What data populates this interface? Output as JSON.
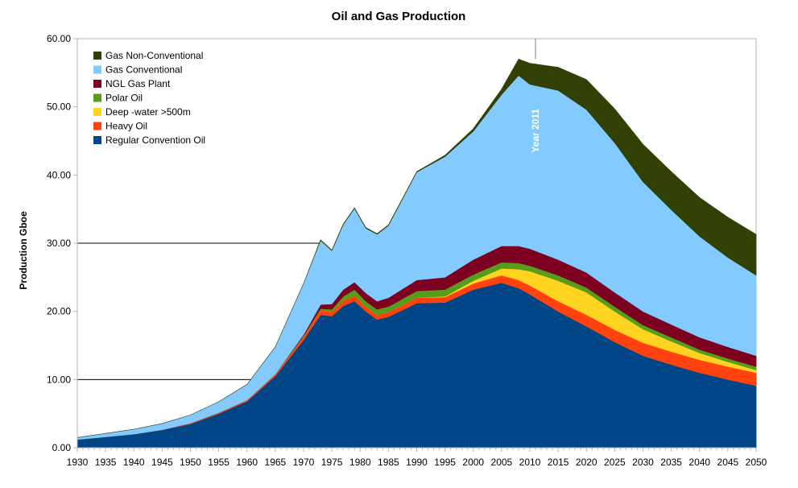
{
  "chart_data": {
    "type": "area",
    "stacked": true,
    "title": "Oil and Gas Production",
    "xlabel": "",
    "ylabel": "Production Gboe",
    "xlim": [
      1930,
      2050
    ],
    "ylim": [
      0,
      60
    ],
    "x_ticks": [
      "1930",
      "1935",
      "1940",
      "1945",
      "1950",
      "1955",
      "1960",
      "1965",
      "1970",
      "1975",
      "1980",
      "1985",
      "1990",
      "1995",
      "2000",
      "2005",
      "2010",
      "2015",
      "2020",
      "2025",
      "2030",
      "2035",
      "2040",
      "2045",
      "2050"
    ],
    "y_ticks": [
      "0.00",
      "10.00",
      "20.00",
      "30.00",
      "40.00",
      "50.00",
      "60.00"
    ],
    "gridlines_y": [
      10,
      30
    ],
    "legend_position": "top-left",
    "x": [
      1930,
      1935,
      1940,
      1945,
      1950,
      1955,
      1960,
      1965,
      1970,
      1973,
      1975,
      1977,
      1979,
      1981,
      1983,
      1985,
      1990,
      1995,
      2000,
      2005,
      2008,
      2010,
      2015,
      2020,
      2025,
      2030,
      2035,
      2040,
      2045,
      2050
    ],
    "series": [
      {
        "name": "Regular Convention Oil",
        "color": "#004586",
        "values": [
          1.2,
          1.6,
          2.0,
          2.6,
          3.5,
          5.0,
          6.8,
          10.5,
          15.8,
          19.5,
          19.3,
          20.8,
          21.5,
          20.0,
          18.8,
          19.2,
          21.2,
          21.3,
          23.2,
          24.2,
          23.4,
          22.5,
          20.0,
          17.8,
          15.5,
          13.5,
          12.2,
          11.0,
          10.0,
          9.1
        ]
      },
      {
        "name": "Heavy Oil",
        "color": "#ff420e",
        "values": [
          0,
          0,
          0,
          0.05,
          0.1,
          0.15,
          0.2,
          0.3,
          0.5,
          0.7,
          0.7,
          0.8,
          0.8,
          0.7,
          0.7,
          0.7,
          0.8,
          0.8,
          0.9,
          1.1,
          1.2,
          1.3,
          1.5,
          1.7,
          1.8,
          1.9,
          1.9,
          1.9,
          1.9,
          1.9
        ]
      },
      {
        "name": "Deep -water >500m",
        "color": "#ffd320",
        "values": [
          0,
          0,
          0,
          0,
          0,
          0,
          0,
          0,
          0,
          0,
          0,
          0,
          0,
          0,
          0,
          0,
          0,
          0.1,
          0.4,
          1.0,
          1.6,
          2.1,
          3.0,
          3.3,
          2.7,
          2.0,
          1.5,
          1.0,
          0.7,
          0.4
        ]
      },
      {
        "name": "Polar Oil",
        "color": "#579d1c",
        "values": [
          0,
          0,
          0,
          0,
          0,
          0,
          0,
          0,
          0.1,
          0.2,
          0.3,
          0.6,
          0.9,
          0.8,
          0.8,
          0.8,
          1.0,
          1.0,
          0.9,
          0.9,
          0.9,
          0.8,
          0.8,
          0.7,
          0.7,
          0.6,
          0.6,
          0.5,
          0.5,
          0.5
        ]
      },
      {
        "name": "NGL Gas Plant",
        "color": "#7e0021",
        "values": [
          0,
          0,
          0,
          0,
          0,
          0,
          0,
          0,
          0.2,
          0.6,
          0.8,
          1.0,
          1.1,
          1.2,
          1.2,
          1.3,
          1.6,
          1.8,
          2.2,
          2.4,
          2.5,
          2.5,
          2.3,
          2.2,
          2.1,
          2.0,
          1.9,
          1.8,
          1.7,
          1.6
        ]
      },
      {
        "name": "Gas Conventional",
        "color": "#83caff",
        "values": [
          0.3,
          0.5,
          0.7,
          0.9,
          1.2,
          1.6,
          2.3,
          4.0,
          7.5,
          9.4,
          7.8,
          9.5,
          10.8,
          9.5,
          9.8,
          10.6,
          15.8,
          17.7,
          18.8,
          22.2,
          25.0,
          24.1,
          24.8,
          23.9,
          21.9,
          19.0,
          16.8,
          14.8,
          13.1,
          11.8
        ]
      },
      {
        "name": "Gas Non-Conventional",
        "color": "#314004",
        "values": [
          0,
          0,
          0,
          0,
          0,
          0,
          0,
          0,
          0,
          0.1,
          0.1,
          0.1,
          0.1,
          0.1,
          0.1,
          0.1,
          0.1,
          0.2,
          0.4,
          0.8,
          2.4,
          3.1,
          3.4,
          4.4,
          5.0,
          5.5,
          5.6,
          5.7,
          5.9,
          6.0
        ]
      }
    ],
    "annotations": [
      {
        "text": "Year 2011",
        "x": 2011,
        "orientation": "vertical",
        "color": "#ffffff"
      }
    ]
  }
}
